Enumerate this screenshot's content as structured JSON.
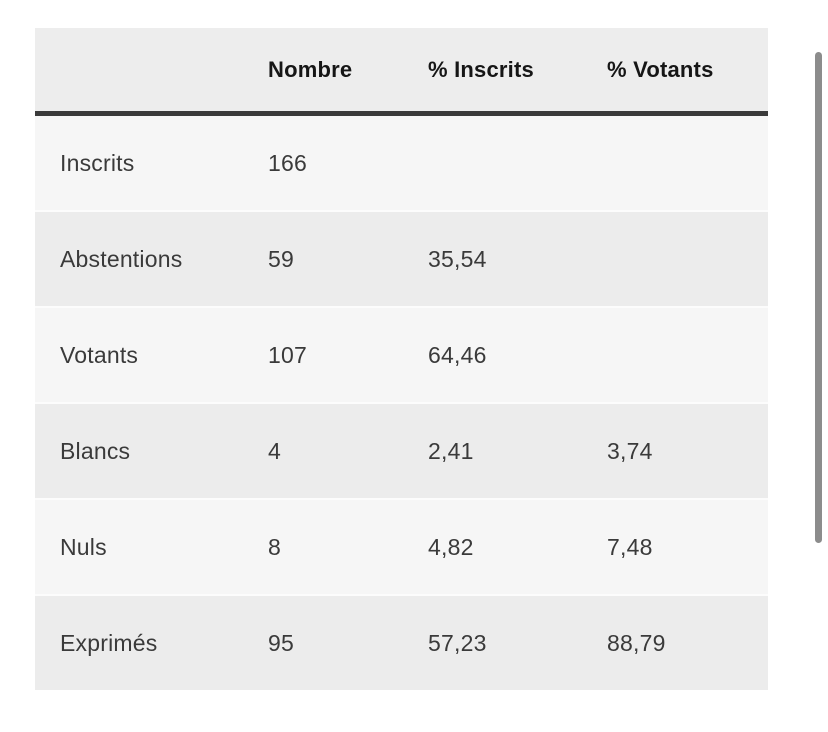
{
  "colors": {
    "page_background": "#ffffff",
    "header_bg": "#ededed",
    "row_light_bg": "#f6f6f6",
    "row_dark_bg": "#ececec",
    "header_rule": "#3a3a3a",
    "header_text": "#161616",
    "body_text": "#3a3a3a",
    "scrollbar_thumb": "#8c8c8c"
  },
  "table": {
    "columns": {
      "label": "",
      "nombre": "Nombre",
      "pct_inscrits": "% Inscrits",
      "pct_votants": "% Votants"
    },
    "rows": [
      {
        "label": "Inscrits",
        "nombre": "166",
        "pct_inscrits": "",
        "pct_votants": ""
      },
      {
        "label": "Abstentions",
        "nombre": "59",
        "pct_inscrits": "35,54",
        "pct_votants": ""
      },
      {
        "label": "Votants",
        "nombre": "107",
        "pct_inscrits": "64,46",
        "pct_votants": ""
      },
      {
        "label": "Blancs",
        "nombre": "4",
        "pct_inscrits": "2,41",
        "pct_votants": "3,74"
      },
      {
        "label": "Nuls",
        "nombre": "8",
        "pct_inscrits": "4,82",
        "pct_votants": "7,48"
      },
      {
        "label": "Exprimés",
        "nombre": "95",
        "pct_inscrits": "57,23",
        "pct_votants": "88,79"
      }
    ]
  }
}
